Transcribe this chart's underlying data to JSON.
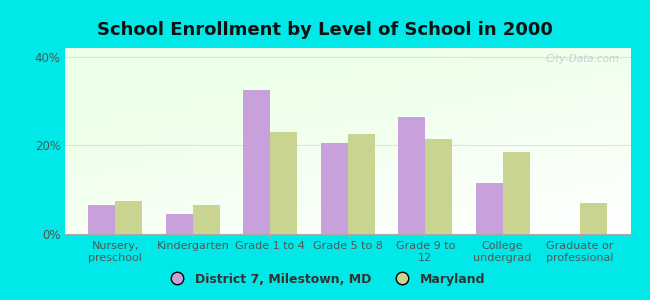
{
  "title": "School Enrollment by Level of School in 2000",
  "categories": [
    "Nursery,\npreschool",
    "Kindergarten",
    "Grade 1 to 4",
    "Grade 5 to 8",
    "Grade 9 to\n12",
    "College\nundergrad",
    "Graduate or\nprofessional"
  ],
  "district_values": [
    6.5,
    4.5,
    32.5,
    20.5,
    26.5,
    11.5,
    0.0
  ],
  "maryland_values": [
    7.5,
    6.5,
    23.0,
    22.5,
    21.5,
    18.5,
    7.0
  ],
  "district_color": "#c8a0dc",
  "maryland_color": "#c8d490",
  "background_color": "#00e8e8",
  "ylim": [
    0,
    42
  ],
  "yticks": [
    0,
    20,
    40
  ],
  "ytick_labels": [
    "0%",
    "20%",
    "40%"
  ],
  "legend_label_district": "District 7, Milestown, MD",
  "legend_label_maryland": "Maryland",
  "bar_width": 0.35,
  "title_fontsize": 13,
  "tick_fontsize": 8,
  "legend_fontsize": 9,
  "watermark": "City-Data.com",
  "grid_color": "#e0e0e0"
}
